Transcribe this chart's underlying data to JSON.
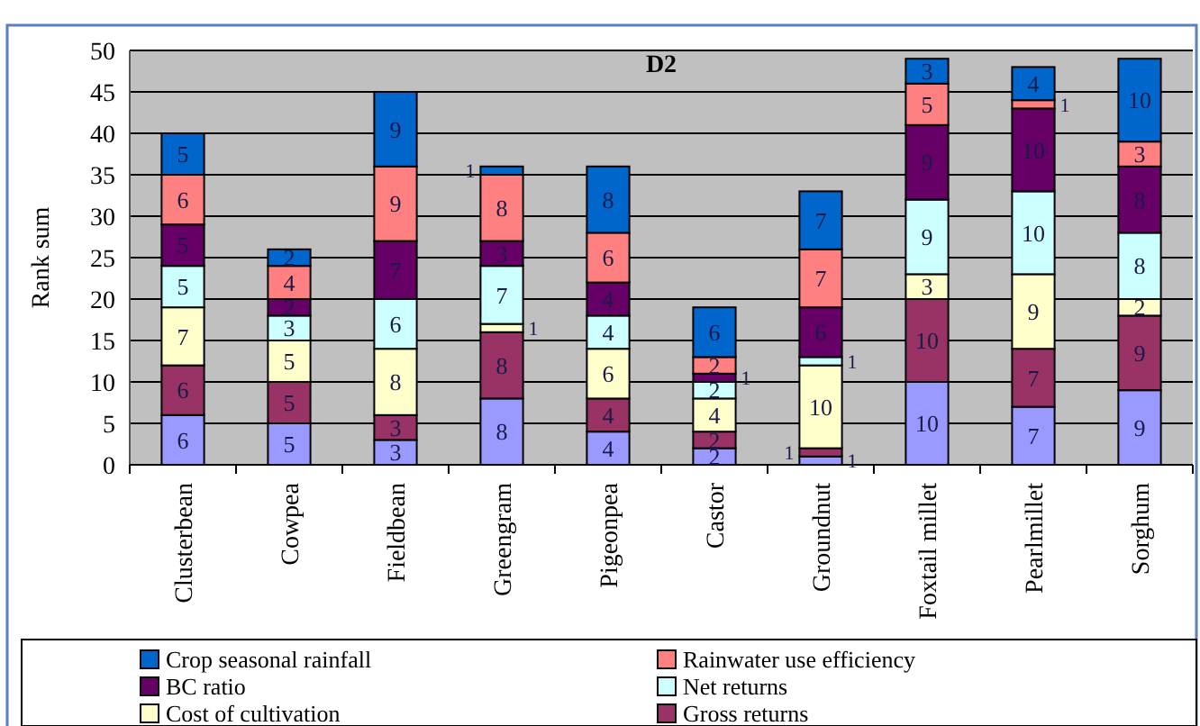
{
  "chart_data": {
    "type": "bar",
    "title": "D2",
    "ylabel": "Rank sum",
    "stacked": true,
    "grid": "y",
    "legend": "bottom",
    "data_labels": true,
    "categories": [
      "Clusterbean",
      "Cowpea",
      "Fieldbean",
      "Greengram",
      "Pigeonpea",
      "Castor",
      "Groundnut",
      "Foxtail millet",
      "Pearlmillet",
      "Sorghum"
    ],
    "ylim": [
      0,
      50
    ],
    "yticks": [
      0,
      5,
      10,
      15,
      20,
      25,
      30,
      35,
      40,
      45,
      50
    ],
    "series": [
      {
        "color": "#9999ff",
        "values": [
          6,
          5,
          3,
          8,
          4,
          2,
          1,
          10,
          7,
          9
        ]
      },
      {
        "name": "Gross returns",
        "color": "#993366",
        "values": [
          6,
          5,
          3,
          8,
          4,
          2,
          1,
          10,
          7,
          9
        ]
      },
      {
        "name": "Cost of cultivation",
        "color": "#ffffcc",
        "values": [
          7,
          5,
          8,
          1,
          6,
          4,
          10,
          3,
          9,
          2
        ]
      },
      {
        "name": "Net returns",
        "color": "#ccffff",
        "values": [
          5,
          3,
          6,
          7,
          4,
          2,
          1,
          9,
          10,
          8
        ]
      },
      {
        "name": "BC ratio",
        "color": "#660066",
        "values": [
          5,
          2,
          7,
          3,
          4,
          1,
          6,
          9,
          10,
          8
        ]
      },
      {
        "name": "Rainwater use efficiency",
        "color": "#ff8080",
        "values": [
          6,
          4,
          9,
          8,
          6,
          2,
          7,
          5,
          1,
          3
        ]
      },
      {
        "name": "Crop seasonal rainfall",
        "color": "#0066cc",
        "values": [
          5,
          2,
          9,
          1,
          8,
          6,
          7,
          3,
          4,
          10
        ]
      }
    ]
  }
}
